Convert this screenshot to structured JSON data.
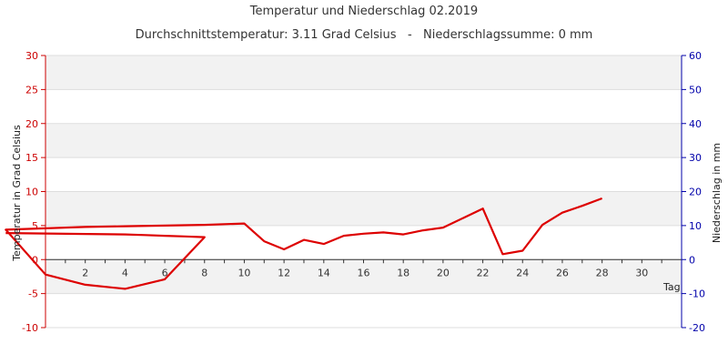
{
  "chart_data": {
    "type": "line",
    "title": "Temperatur und Niederschlag 02.2019",
    "subtitle": "Durchschnittstemperatur: 3.11 Grad Celsius   -   Niederschlagssumme: 0 mm",
    "xlabel": "Tag",
    "ylabel_left": "Temperatur in Grad Celsius",
    "ylabel_right": "Niederschlag in mm",
    "xlim": [
      0,
      32
    ],
    "ylim_left": [
      -10,
      30
    ],
    "ylim_right": [
      -20,
      60
    ],
    "x_ticks": [
      2,
      4,
      6,
      8,
      10,
      12,
      14,
      16,
      18,
      20,
      22,
      24,
      26,
      28,
      30
    ],
    "y_ticks_left": [
      -10,
      -5,
      0,
      5,
      10,
      15,
      20,
      25,
      30
    ],
    "y_ticks_right": [
      -20,
      -10,
      0,
      10,
      20,
      30,
      40,
      50,
      60
    ],
    "grid": true,
    "colors": {
      "temperature": "#dd0000",
      "left_axis": "#cc0000",
      "right_axis": "#0000aa",
      "band": "#f2f2f2",
      "grid": "#dddddd"
    },
    "series": [
      {
        "name": "Temperatur",
        "x": [
          -2,
          4,
          5,
          6,
          7,
          8,
          6,
          4,
          2,
          0,
          -2,
          0,
          2,
          4,
          6,
          8,
          10,
          11,
          12,
          13,
          14,
          15,
          16,
          17,
          18,
          19,
          20,
          21,
          22,
          23,
          24,
          25,
          26,
          27,
          28
        ],
        "y": [
          3.9,
          3.7,
          3.6,
          3.5,
          3.4,
          3.3,
          -2.9,
          -4.3,
          -3.7,
          -2.2,
          4.4,
          4.6,
          4.8,
          4.9,
          5.0,
          5.1,
          5.3,
          2.7,
          1.5,
          2.9,
          2.3,
          3.5,
          3.8,
          4.0,
          3.7,
          4.3,
          4.7,
          6.1,
          7.5,
          0.8,
          1.3,
          5.1,
          6.9,
          7.9,
          9.0
        ]
      }
    ]
  }
}
